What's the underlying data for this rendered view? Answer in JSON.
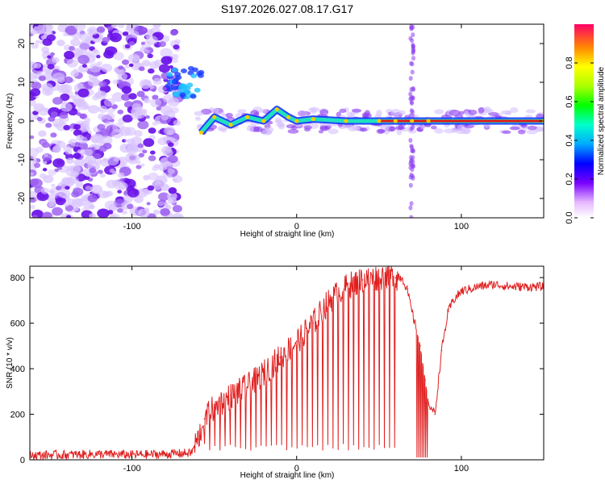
{
  "title": "S197.2026.027.08.17.G17",
  "colors": {
    "snr_line": "#e02020",
    "frame": "#000000",
    "scatter": "#7a1fe0",
    "core_line": "#e01818"
  },
  "chart_data": [
    {
      "type": "heatmap",
      "name": "spectrogram",
      "xlabel": "Height of straight line (km)",
      "ylabel": "Frequency (Hz)",
      "xlim": [
        -162,
        150
      ],
      "ylim": [
        -25,
        25
      ],
      "xticks": [
        -100,
        0,
        100
      ],
      "xtick_labels": [
        "-100",
        "0",
        "100"
      ],
      "yticks": [
        -20,
        -10,
        0,
        10,
        20
      ],
      "ytick_labels": [
        "-20",
        "-10",
        "0",
        "10",
        "20"
      ],
      "colorbar": {
        "label": "Normalized spectral amplitude",
        "range": [
          0,
          1
        ],
        "ticks": [
          0,
          0.2,
          0.4,
          0.6,
          0.8
        ],
        "tick_labels": [
          "0.0",
          "0.2",
          "0.4",
          "0.6",
          "0.8"
        ]
      },
      "ridge": {
        "x": [
          -58,
          -50,
          -40,
          -30,
          -20,
          -12,
          -5,
          0,
          10,
          30,
          50,
          60,
          70,
          80,
          150
        ],
        "y": [
          -3,
          1,
          -1,
          1,
          0,
          3,
          1,
          0,
          0.5,
          0,
          0,
          0,
          0,
          0,
          0
        ]
      }
    },
    {
      "type": "line",
      "name": "snr",
      "xlabel": "Height of straight line (km)",
      "ylabel": "SNR (10 * v/v)",
      "xlim": [
        -162,
        150
      ],
      "ylim": [
        0,
        850
      ],
      "xticks": [
        -100,
        0,
        100
      ],
      "xtick_labels": [
        "-100",
        "0",
        "100"
      ],
      "yticks": [
        0,
        200,
        400,
        600,
        800
      ],
      "ytick_labels": [
        "0",
        "200",
        "400",
        "600",
        "800"
      ],
      "x": [
        -162,
        -140,
        -120,
        -100,
        -80,
        -64,
        -60,
        -56,
        -50,
        -40,
        -30,
        -20,
        -10,
        0,
        10,
        20,
        30,
        40,
        50,
        55,
        60,
        64,
        67,
        70,
        75,
        78,
        80,
        84,
        88,
        92,
        95,
        100,
        110,
        120,
        130,
        150
      ],
      "y": [
        20,
        22,
        25,
        22,
        25,
        30,
        90,
        180,
        230,
        280,
        320,
        380,
        450,
        520,
        600,
        700,
        760,
        790,
        800,
        810,
        800,
        800,
        750,
        650,
        500,
        350,
        250,
        200,
        480,
        650,
        700,
        740,
        760,
        770,
        760,
        760
      ]
    }
  ]
}
